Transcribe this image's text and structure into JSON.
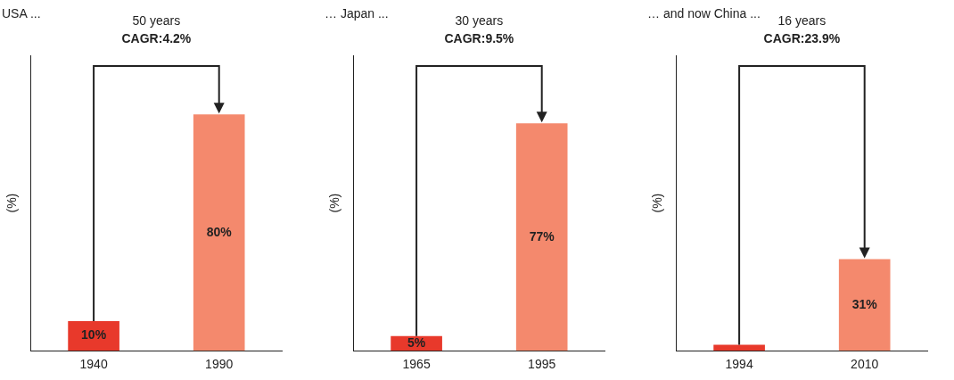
{
  "chart_data": [
    {
      "type": "bar",
      "title": "USA ...",
      "ylabel": "(%)",
      "categories": [
        "1940",
        "1990"
      ],
      "values": [
        10,
        80
      ],
      "colors": [
        "#e8392b",
        "#f4896d"
      ],
      "value_labels": [
        "10%",
        "80%"
      ],
      "ylim": [
        0,
        100
      ],
      "tick_labels": "x",
      "grid": false,
      "legend": false,
      "annotations": [
        "50 years",
        "CAGR:4.2%"
      ]
    },
    {
      "type": "bar",
      "title": "… Japan ...",
      "ylabel": "(%)",
      "categories": [
        "1965",
        "1995"
      ],
      "values": [
        5,
        77
      ],
      "colors": [
        "#e8392b",
        "#f4896d"
      ],
      "value_labels": [
        "5%",
        "77%"
      ],
      "ylim": [
        0,
        100
      ],
      "tick_labels": "x",
      "grid": false,
      "legend": false,
      "annotations": [
        "30 years",
        "CAGR:9.5%"
      ]
    },
    {
      "type": "bar",
      "title": "… and now China ...",
      "ylabel": "(%)",
      "categories": [
        "1994",
        "2010"
      ],
      "values": [
        2,
        31
      ],
      "colors": [
        "#e8392b",
        "#f4896d"
      ],
      "value_labels": [
        null,
        "31%"
      ],
      "ylim": [
        0,
        100
      ],
      "tick_labels": "x",
      "grid": false,
      "legend": false,
      "annotations": [
        "16 years",
        "CAGR:23.9%"
      ]
    }
  ]
}
